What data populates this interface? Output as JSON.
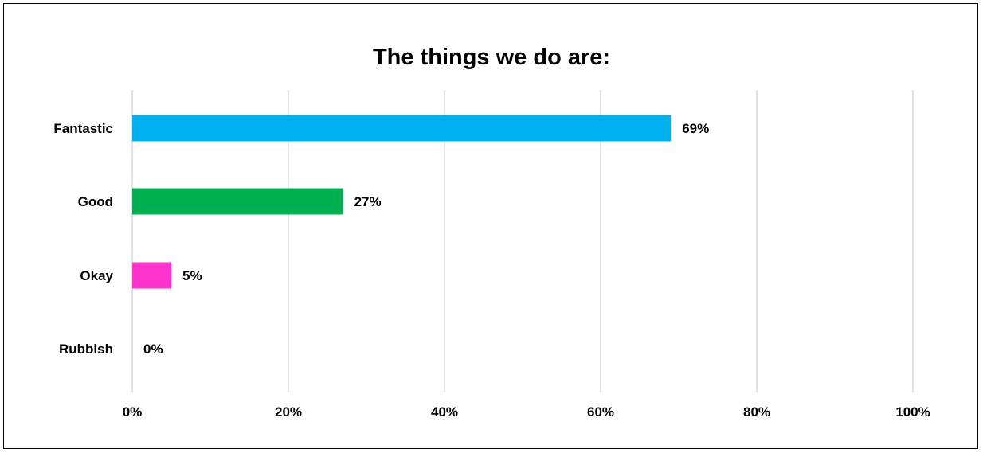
{
  "chart_data": {
    "type": "bar",
    "orientation": "horizontal",
    "title": "The things we do are:",
    "xlabel": "",
    "ylabel": "",
    "categories": [
      "Fantastic",
      "Good",
      "Okay",
      "Rubbish"
    ],
    "values": [
      69,
      27,
      5,
      0
    ],
    "value_labels": [
      "69%",
      "27%",
      "5%",
      "0%"
    ],
    "bar_colors": [
      "#00B0F0",
      "#00B050",
      "#FF33CC",
      "#FFC000"
    ],
    "xlim": [
      0,
      100
    ],
    "x_ticks": [
      0,
      20,
      40,
      60,
      80,
      100
    ],
    "x_tick_labels": [
      "0%",
      "20%",
      "40%",
      "60%",
      "80%",
      "100%"
    ],
    "grid": "vertical",
    "grid_color": "#D9D9D9",
    "legend": "none"
  }
}
